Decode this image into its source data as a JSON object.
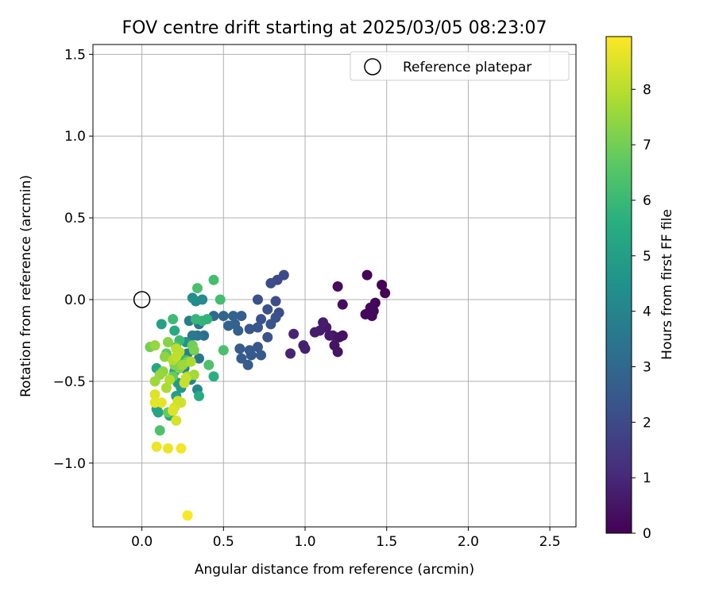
{
  "chart_data": {
    "type": "scatter",
    "title": "FOV centre drift starting at 2025/03/05 08:23:07",
    "xlabel": "Angular distance from reference (arcmin)",
    "ylabel": "Rotation from reference (arcmin)",
    "xlim": [
      -0.3,
      2.66
    ],
    "ylim": [
      -1.39,
      1.56
    ],
    "x_ticks": [
      0.0,
      0.5,
      1.0,
      1.5,
      2.0,
      2.5
    ],
    "x_tick_labels": [
      "0.0",
      "0.5",
      "1.0",
      "1.5",
      "2.0",
      "2.5"
    ],
    "y_ticks": [
      -1.0,
      -0.5,
      0.0,
      0.5,
      1.0,
      1.5
    ],
    "y_tick_labels": [
      "−1.0",
      "−0.5",
      "0.0",
      "0.5",
      "1.0",
      "1.5"
    ],
    "grid": true,
    "legend": {
      "placement": "top-right",
      "entries": [
        "Reference platepar"
      ]
    },
    "reference_point": {
      "x": 0.0,
      "y": 0.0,
      "label": "Reference platepar"
    },
    "colorbar": {
      "label": "Hours from first FF file",
      "colormap": "viridis",
      "range": [
        0,
        8.95
      ],
      "ticks": [
        0,
        1,
        2,
        3,
        4,
        5,
        6,
        7,
        8
      ],
      "tick_labels": [
        "0",
        "1",
        "2",
        "3",
        "4",
        "5",
        "6",
        "7",
        "8"
      ]
    },
    "points": [
      {
        "x": 1.38,
        "y": 0.15,
        "h": 0.1
      },
      {
        "x": 1.47,
        "y": 0.09,
        "h": 0.1
      },
      {
        "x": 1.49,
        "y": 0.04,
        "h": 0.1
      },
      {
        "x": 1.43,
        "y": -0.02,
        "h": 0.1
      },
      {
        "x": 1.4,
        "y": -0.05,
        "h": 0.2
      },
      {
        "x": 1.42,
        "y": -0.07,
        "h": 0.2
      },
      {
        "x": 1.37,
        "y": -0.09,
        "h": 0.2
      },
      {
        "x": 1.41,
        "y": -0.1,
        "h": 0.2
      },
      {
        "x": 1.2,
        "y": 0.08,
        "h": 0.3
      },
      {
        "x": 1.23,
        "y": -0.03,
        "h": 0.3
      },
      {
        "x": 1.21,
        "y": -0.23,
        "h": 0.4
      },
      {
        "x": 1.23,
        "y": -0.22,
        "h": 0.4
      },
      {
        "x": 1.17,
        "y": -0.22,
        "h": 0.5
      },
      {
        "x": 1.18,
        "y": -0.28,
        "h": 0.5
      },
      {
        "x": 1.2,
        "y": -0.32,
        "h": 0.5
      },
      {
        "x": 1.15,
        "y": -0.22,
        "h": 0.6
      },
      {
        "x": 1.13,
        "y": -0.17,
        "h": 0.6
      },
      {
        "x": 1.11,
        "y": -0.14,
        "h": 0.7
      },
      {
        "x": 1.09,
        "y": -0.19,
        "h": 0.7
      },
      {
        "x": 1.06,
        "y": -0.2,
        "h": 0.7
      },
      {
        "x": 0.99,
        "y": -0.28,
        "h": 0.8
      },
      {
        "x": 1.0,
        "y": -0.3,
        "h": 0.8
      },
      {
        "x": 0.93,
        "y": -0.21,
        "h": 0.9
      },
      {
        "x": 0.91,
        "y": -0.33,
        "h": 0.9
      },
      {
        "x": 0.87,
        "y": 0.15,
        "h": 2.0
      },
      {
        "x": 0.83,
        "y": 0.12,
        "h": 2.0
      },
      {
        "x": 0.79,
        "y": 0.1,
        "h": 2.1
      },
      {
        "x": 0.82,
        "y": -0.01,
        "h": 2.1
      },
      {
        "x": 0.84,
        "y": -0.08,
        "h": 2.1
      },
      {
        "x": 0.82,
        "y": -0.11,
        "h": 2.2
      },
      {
        "x": 0.77,
        "y": -0.06,
        "h": 2.2
      },
      {
        "x": 0.71,
        "y": 0.0,
        "h": 2.2
      },
      {
        "x": 0.73,
        "y": -0.12,
        "h": 2.3
      },
      {
        "x": 0.77,
        "y": -0.23,
        "h": 2.3
      },
      {
        "x": 0.79,
        "y": -0.15,
        "h": 2.3
      },
      {
        "x": 0.71,
        "y": -0.17,
        "h": 2.4
      },
      {
        "x": 0.66,
        "y": -0.18,
        "h": 2.4
      },
      {
        "x": 0.71,
        "y": -0.29,
        "h": 2.4
      },
      {
        "x": 0.73,
        "y": -0.34,
        "h": 2.5
      },
      {
        "x": 0.66,
        "y": -0.31,
        "h": 2.5
      },
      {
        "x": 0.67,
        "y": -0.34,
        "h": 2.5
      },
      {
        "x": 0.65,
        "y": -0.4,
        "h": 2.6
      },
      {
        "x": 0.61,
        "y": -0.36,
        "h": 2.6
      },
      {
        "x": 0.6,
        "y": -0.3,
        "h": 2.6
      },
      {
        "x": 0.59,
        "y": -0.19,
        "h": 2.7
      },
      {
        "x": 0.61,
        "y": -0.1,
        "h": 2.7
      },
      {
        "x": 0.57,
        "y": -0.15,
        "h": 2.8
      },
      {
        "x": 0.56,
        "y": -0.1,
        "h": 2.8
      },
      {
        "x": 0.53,
        "y": -0.16,
        "h": 2.9
      },
      {
        "x": 0.5,
        "y": -0.1,
        "h": 2.9
      },
      {
        "x": 0.44,
        "y": -0.1,
        "h": 3.1
      },
      {
        "x": 0.38,
        "y": -0.22,
        "h": 3.3
      },
      {
        "x": 0.35,
        "y": -0.15,
        "h": 3.4
      },
      {
        "x": 0.34,
        "y": -0.22,
        "h": 3.5
      },
      {
        "x": 0.35,
        "y": -0.36,
        "h": 3.5
      },
      {
        "x": 0.31,
        "y": -0.22,
        "h": 3.6
      },
      {
        "x": 0.29,
        "y": -0.13,
        "h": 3.7
      },
      {
        "x": 0.28,
        "y": -0.33,
        "h": 3.8
      },
      {
        "x": 0.26,
        "y": -0.42,
        "h": 3.9
      },
      {
        "x": 0.3,
        "y": -0.49,
        "h": 4.0
      },
      {
        "x": 0.34,
        "y": -0.55,
        "h": 4.1
      },
      {
        "x": 0.33,
        "y": -0.01,
        "h": 4.2
      },
      {
        "x": 0.37,
        "y": 0.0,
        "h": 4.3
      },
      {
        "x": 0.31,
        "y": 0.01,
        "h": 4.4
      },
      {
        "x": 0.27,
        "y": -0.26,
        "h": 4.6
      },
      {
        "x": 0.24,
        "y": -0.36,
        "h": 4.7
      },
      {
        "x": 0.22,
        "y": -0.51,
        "h": 4.8
      },
      {
        "x": 0.24,
        "y": -0.54,
        "h": 4.8
      },
      {
        "x": 0.2,
        "y": -0.44,
        "h": 4.9
      },
      {
        "x": 0.21,
        "y": -0.59,
        "h": 5.0
      },
      {
        "x": 0.12,
        "y": -0.15,
        "h": 5.1
      },
      {
        "x": 0.09,
        "y": -0.67,
        "h": 5.2
      },
      {
        "x": 0.1,
        "y": -0.69,
        "h": 5.2
      },
      {
        "x": 0.09,
        "y": -0.42,
        "h": 5.3
      },
      {
        "x": 0.17,
        "y": -0.71,
        "h": 5.3
      },
      {
        "x": 0.2,
        "y": -0.19,
        "h": 5.4
      },
      {
        "x": 0.35,
        "y": -0.59,
        "h": 5.5
      },
      {
        "x": 0.44,
        "y": -0.47,
        "h": 5.6
      },
      {
        "x": 0.37,
        "y": -0.13,
        "h": 5.8
      },
      {
        "x": 0.4,
        "y": -0.12,
        "h": 5.8
      },
      {
        "x": 0.33,
        "y": -0.12,
        "h": 5.9
      },
      {
        "x": 0.23,
        "y": -0.25,
        "h": 6.0
      },
      {
        "x": 0.27,
        "y": -0.37,
        "h": 6.0
      },
      {
        "x": 0.19,
        "y": -0.12,
        "h": 6.1
      },
      {
        "x": 0.48,
        "y": 0.0,
        "h": 6.2
      },
      {
        "x": 0.44,
        "y": 0.12,
        "h": 6.2
      },
      {
        "x": 0.34,
        "y": 0.07,
        "h": 6.3
      },
      {
        "x": 0.5,
        "y": -0.31,
        "h": 6.3
      },
      {
        "x": 0.41,
        "y": -0.4,
        "h": 6.4
      },
      {
        "x": 0.11,
        "y": -0.8,
        "h": 6.4
      },
      {
        "x": 0.21,
        "y": -0.29,
        "h": 6.5
      },
      {
        "x": 0.22,
        "y": -0.33,
        "h": 6.6
      },
      {
        "x": 0.15,
        "y": -0.33,
        "h": 6.7
      },
      {
        "x": 0.19,
        "y": -0.47,
        "h": 6.8
      },
      {
        "x": 0.16,
        "y": -0.69,
        "h": 6.8
      },
      {
        "x": 0.05,
        "y": -0.29,
        "h": 7.0
      },
      {
        "x": 0.31,
        "y": -0.28,
        "h": 7.0
      },
      {
        "x": 0.32,
        "y": -0.31,
        "h": 7.1
      },
      {
        "x": 0.28,
        "y": -0.38,
        "h": 7.1
      },
      {
        "x": 0.2,
        "y": -0.4,
        "h": 7.2
      },
      {
        "x": 0.23,
        "y": -0.42,
        "h": 7.2
      },
      {
        "x": 0.16,
        "y": -0.26,
        "h": 7.3
      },
      {
        "x": 0.14,
        "y": -0.35,
        "h": 7.4
      },
      {
        "x": 0.13,
        "y": -0.44,
        "h": 7.4
      },
      {
        "x": 0.08,
        "y": -0.28,
        "h": 7.5
      },
      {
        "x": 0.11,
        "y": -0.46,
        "h": 7.5
      },
      {
        "x": 0.08,
        "y": -0.5,
        "h": 7.6
      },
      {
        "x": 0.25,
        "y": -0.4,
        "h": 7.6
      },
      {
        "x": 0.28,
        "y": -0.47,
        "h": 7.7
      },
      {
        "x": 0.32,
        "y": -0.46,
        "h": 7.7
      },
      {
        "x": 0.3,
        "y": -0.38,
        "h": 7.8
      },
      {
        "x": 0.15,
        "y": -0.54,
        "h": 7.8
      },
      {
        "x": 0.17,
        "y": -0.49,
        "h": 7.9
      },
      {
        "x": 0.19,
        "y": -0.37,
        "h": 7.9
      },
      {
        "x": 0.21,
        "y": -0.3,
        "h": 8.0
      },
      {
        "x": 0.23,
        "y": -0.32,
        "h": 8.0
      },
      {
        "x": 0.21,
        "y": -0.35,
        "h": 8.1
      },
      {
        "x": 0.27,
        "y": -0.48,
        "h": 8.2
      },
      {
        "x": 0.26,
        "y": -0.51,
        "h": 8.2
      },
      {
        "x": 0.22,
        "y": -0.62,
        "h": 8.3
      },
      {
        "x": 0.24,
        "y": -0.63,
        "h": 8.3
      },
      {
        "x": 0.2,
        "y": -0.66,
        "h": 8.4
      },
      {
        "x": 0.21,
        "y": -0.74,
        "h": 8.4
      },
      {
        "x": 0.19,
        "y": -0.68,
        "h": 8.5
      },
      {
        "x": 0.08,
        "y": -0.58,
        "h": 8.5
      },
      {
        "x": 0.08,
        "y": -0.63,
        "h": 8.6
      },
      {
        "x": 0.12,
        "y": -0.63,
        "h": 8.6
      },
      {
        "x": 0.09,
        "y": -0.9,
        "h": 8.7
      },
      {
        "x": 0.16,
        "y": -0.91,
        "h": 8.7
      },
      {
        "x": 0.24,
        "y": -0.91,
        "h": 8.8
      },
      {
        "x": 0.28,
        "y": -1.32,
        "h": 8.9
      }
    ]
  }
}
